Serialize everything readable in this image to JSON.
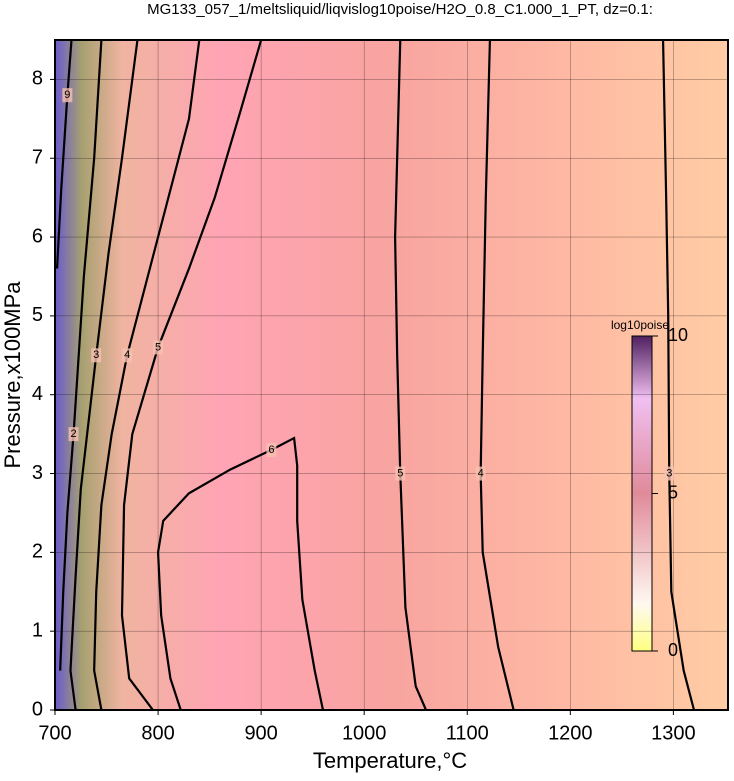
{
  "chart_data": {
    "type": "contour",
    "title": "MG133_057_1/meltsliquid/liqvislog10poise/H2O_0.8_C1.000_1_PT, dz=0.1:",
    "xlabel": "Temperature,°C",
    "ylabel": "Pressure,x100MPa",
    "xlim": [
      700,
      1353
    ],
    "ylim": [
      0,
      8.5
    ],
    "xticks": [
      700,
      800,
      900,
      1000,
      1100,
      1200,
      1300
    ],
    "yticks": [
      0,
      1,
      2,
      3,
      4,
      5,
      6,
      7,
      8
    ],
    "grid": true,
    "colorbar": {
      "label": "log10poise",
      "lim": [
        0,
        10
      ],
      "ticks": [
        0,
        5,
        10
      ]
    },
    "contours": [
      {
        "level": 6,
        "x": [
          822,
          812,
          803,
          800,
          805,
          830,
          870,
          910,
          932,
          935,
          935,
          940,
          952,
          960
        ],
        "y": [
          0,
          0.4,
          1.2,
          2.0,
          2.4,
          2.75,
          3.05,
          3.3,
          3.45,
          3.1,
          2.4,
          1.4,
          0.5,
          0
        ]
      },
      {
        "level": 5,
        "x": [
          795,
          772,
          765,
          767,
          775,
          800,
          830,
          855,
          880,
          900
        ],
        "y": [
          0,
          0.4,
          1.2,
          2.6,
          3.5,
          4.6,
          5.6,
          6.5,
          7.6,
          8.5
        ]
      },
      {
        "level": 5,
        "x": [
          1035,
          1030,
          1032,
          1035,
          1040,
          1050,
          1060
        ],
        "y": [
          8.5,
          6.0,
          4.5,
          3.0,
          1.3,
          0.3,
          0
        ]
      },
      {
        "level": 4,
        "x": [
          745,
          738,
          740,
          745,
          755,
          770,
          790,
          810,
          830,
          840
        ],
        "y": [
          0,
          0.5,
          1.5,
          2.6,
          3.5,
          4.5,
          5.5,
          6.5,
          7.5,
          8.5
        ]
      },
      {
        "level": 4,
        "x": [
          1122,
          1118,
          1115,
          1113,
          1115,
          1130,
          1145
        ],
        "y": [
          8.5,
          6.5,
          4.5,
          3.0,
          2.0,
          0.8,
          0
        ]
      },
      {
        "level": 3,
        "x": [
          720,
          715,
          720,
          725,
          740,
          752,
          765,
          780
        ],
        "y": [
          0,
          0.5,
          1.7,
          2.8,
          4.5,
          5.8,
          7.0,
          8.5
        ]
      },
      {
        "level": 3,
        "x": [
          1290,
          1293,
          1295,
          1296,
          1298,
          1310,
          1320
        ],
        "y": [
          8.5,
          6.5,
          5.0,
          3.0,
          1.5,
          0.5,
          0
        ]
      },
      {
        "level": 2,
        "x": [
          705,
          708,
          712,
          718,
          728,
          738,
          745
        ],
        "y": [
          0.5,
          1.5,
          2.5,
          3.5,
          5.5,
          7.0,
          8.5
        ]
      },
      {
        "level": 9,
        "x": [
          702,
          706,
          712,
          716
        ],
        "y": [
          5.6,
          6.6,
          7.8,
          8.5
        ]
      }
    ]
  }
}
